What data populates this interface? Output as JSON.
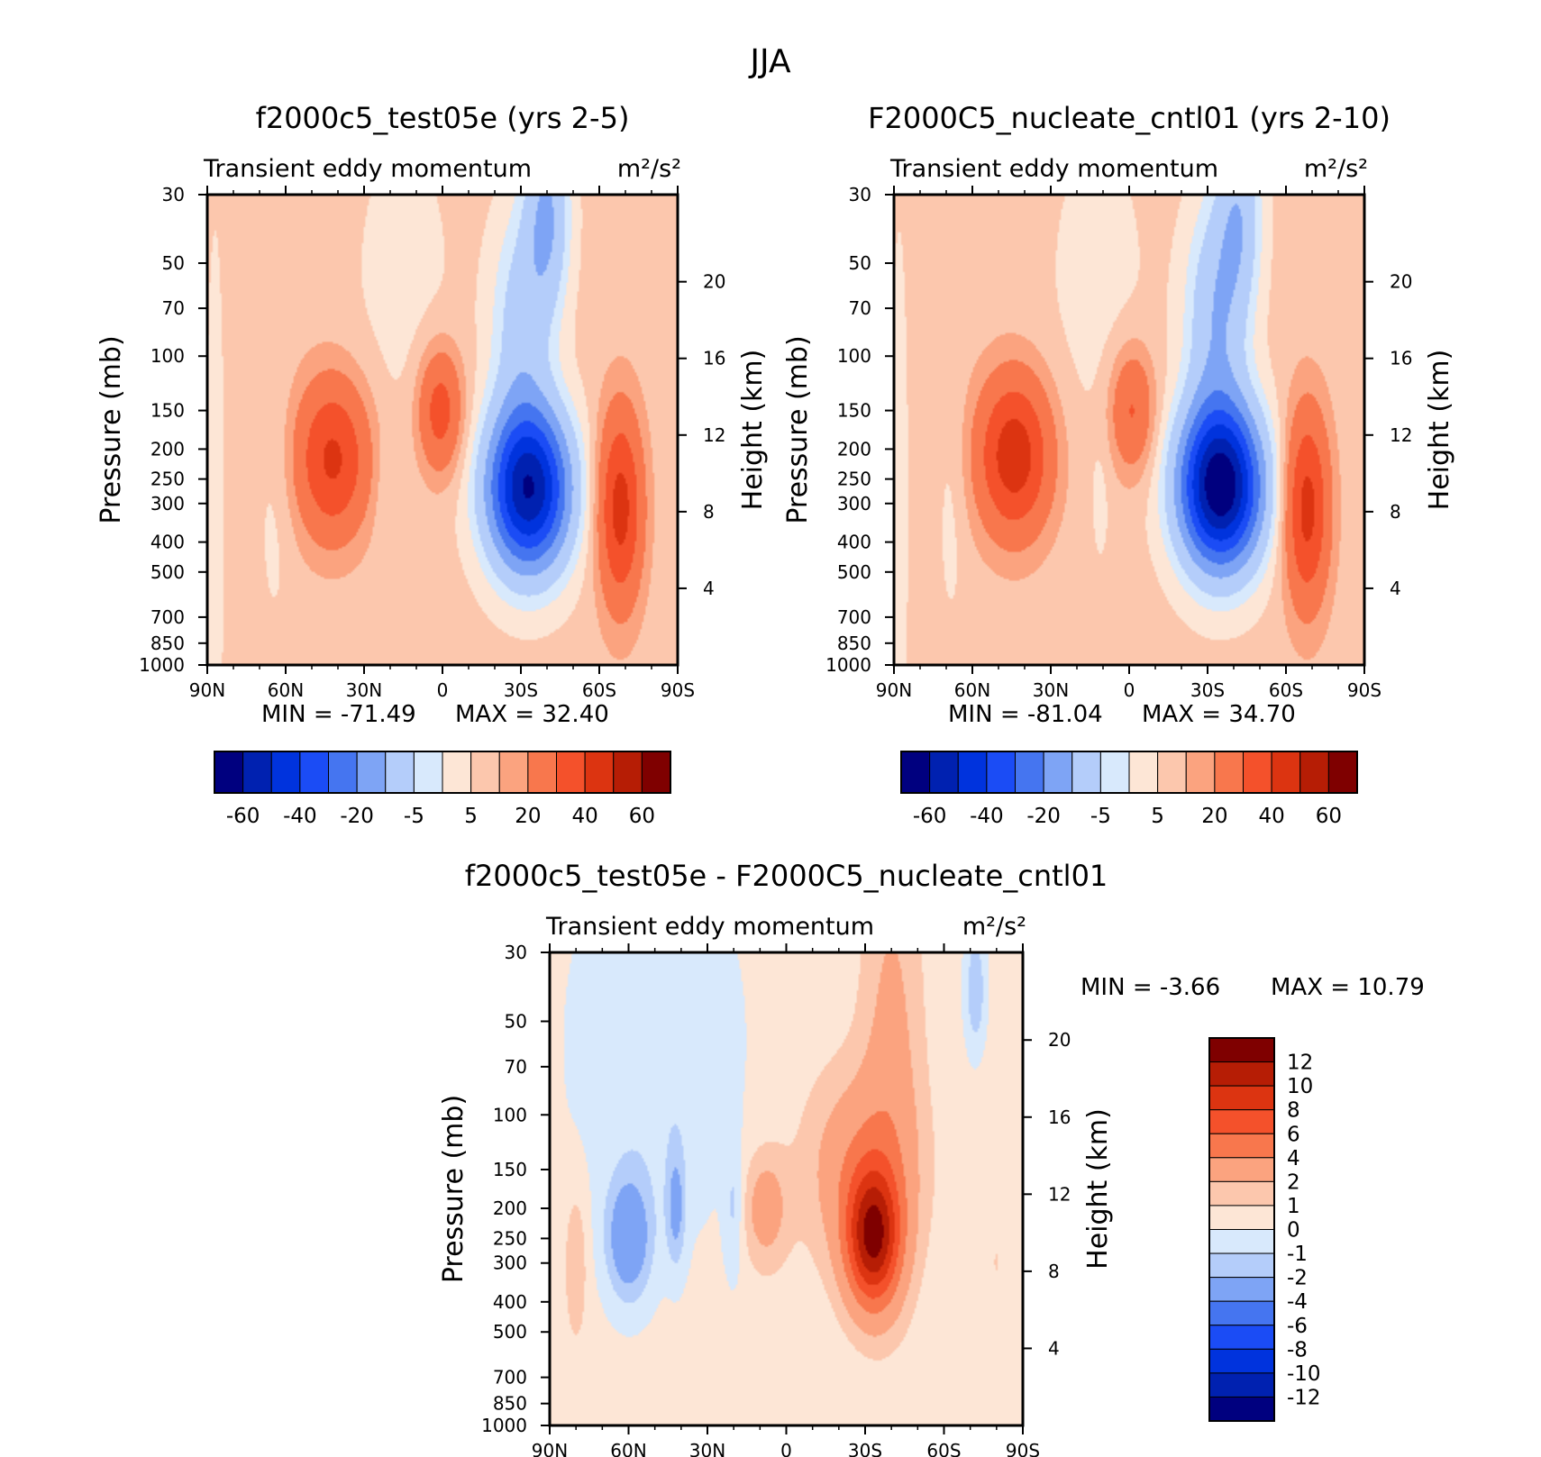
{
  "title": "JJA",
  "palettes": {
    "main": [
      "#00007f",
      "#0021b0",
      "#0033dd",
      "#1b4cf5",
      "#4575f0",
      "#7ea4f5",
      "#b4cdfa",
      "#d8e9fc",
      "#fde6d6",
      "#fcc7ad",
      "#fba37f",
      "#f8774d",
      "#f4512b",
      "#dc3411",
      "#b61d05",
      "#7f0000"
    ],
    "diff": [
      "#00007f",
      "#0021b0",
      "#0033dd",
      "#1b4cf5",
      "#4575f0",
      "#7ea4f5",
      "#b4cdfa",
      "#d8e9fc",
      "#fde6d6",
      "#fcc7ad",
      "#fba37f",
      "#f8774d",
      "#f4512b",
      "#dc3411",
      "#b61d05",
      "#7f0000"
    ]
  },
  "shared_text": {
    "subtitle": "Transient eddy momentum",
    "units": "m²/s²",
    "ylabel_left": "Pressure (mb)",
    "ylabel_right": "Height (km)"
  },
  "chart_data": [
    {
      "type": "contour",
      "id": "test",
      "title": "f2000c5_test05e (yrs 2-5)",
      "subtitle": "Transient eddy momentum",
      "units": "m²/s²",
      "xlabel": "",
      "ylabel": "Pressure (mb)",
      "ylabel_right": "Height (km)",
      "x_ticks": [
        "90N",
        "60N",
        "30N",
        "0",
        "30S",
        "60S",
        "90S"
      ],
      "x_range": [
        90,
        -90
      ],
      "y_ticks": [
        30,
        50,
        70,
        100,
        150,
        200,
        250,
        300,
        400,
        500,
        700,
        850,
        1000
      ],
      "y_range": [
        30,
        1000
      ],
      "y2_ticks": [
        4,
        8,
        12,
        16,
        20
      ],
      "min_label": "MIN = -71.49",
      "max_label": "MAX = 32.40",
      "min": -71.49,
      "max": 32.4,
      "levels": [
        -70,
        -60,
        -50,
        -40,
        -30,
        -20,
        -10,
        -5,
        0,
        5,
        10,
        20,
        30,
        40,
        50,
        60,
        70
      ],
      "colorbar_labels": [
        "-60",
        "-40",
        "-20",
        "-5",
        "5",
        "20",
        "40",
        "60"
      ],
      "palette": "main",
      "background": 2,
      "features": [
        {
          "lat": -33,
          "p": 270,
          "amp": -71.49,
          "sx": 11,
          "sy": 0.42
        },
        {
          "lat": -30,
          "p": 80,
          "amp": -16,
          "sx": 8,
          "sy": 0.6
        },
        {
          "lat": -40,
          "p": 35,
          "amp": -22,
          "sx": 6,
          "sy": 0.5
        },
        {
          "lat": 42,
          "p": 215,
          "amp": 30,
          "sx": 10,
          "sy": 0.42
        },
        {
          "lat": 1,
          "p": 150,
          "amp": 24,
          "sx": 6,
          "sy": 0.33
        },
        {
          "lat": -68,
          "p": 310,
          "amp": 32.4,
          "sx": 6,
          "sy": 0.52
        },
        {
          "lat": 15,
          "p": 60,
          "amp": -4,
          "sx": 14,
          "sy": 0.9
        },
        {
          "lat": 22,
          "p": 300,
          "amp": -3,
          "sx": 3,
          "sy": 0.35
        },
        {
          "lat": 64,
          "p": 300,
          "amp": -3.5,
          "sx": 5,
          "sy": 0.7
        },
        {
          "lat": 87,
          "p": 300,
          "amp": -5,
          "sx": 2.5,
          "sy": 1.5
        }
      ]
    },
    {
      "type": "contour",
      "id": "cntl",
      "title": "F2000C5_nucleate_cntl01 (yrs 2-10)",
      "subtitle": "Transient eddy momentum",
      "units": "m²/s²",
      "xlabel": "",
      "ylabel": "Pressure (mb)",
      "ylabel_right": "Height (km)",
      "x_ticks": [
        "90N",
        "60N",
        "30N",
        "0",
        "30S",
        "60S",
        "90S"
      ],
      "x_range": [
        90,
        -90
      ],
      "y_ticks": [
        30,
        50,
        70,
        100,
        150,
        200,
        250,
        300,
        400,
        500,
        700,
        850,
        1000
      ],
      "y_range": [
        30,
        1000
      ],
      "y2_ticks": [
        4,
        8,
        12,
        16,
        20
      ],
      "min_label": "MIN = -81.04",
      "max_label": "MAX = 34.70",
      "min": -81.04,
      "max": 34.7,
      "levels": [
        -70,
        -60,
        -50,
        -40,
        -30,
        -20,
        -10,
        -5,
        0,
        5,
        10,
        20,
        30,
        40,
        50,
        60,
        70
      ],
      "colorbar_labels": [
        "-60",
        "-40",
        "-20",
        "-5",
        "5",
        "20",
        "40",
        "60"
      ],
      "palette": "main",
      "background": 2,
      "features": [
        {
          "lat": -35,
          "p": 265,
          "amp": -81.04,
          "sx": 11,
          "sy": 0.42
        },
        {
          "lat": -33,
          "p": 75,
          "amp": -20,
          "sx": 8,
          "sy": 0.6
        },
        {
          "lat": -42,
          "p": 35,
          "amp": -18,
          "sx": 6,
          "sy": 0.5
        },
        {
          "lat": 44,
          "p": 210,
          "amp": 34.7,
          "sx": 10,
          "sy": 0.42
        },
        {
          "lat": -1,
          "p": 150,
          "amp": 20,
          "sx": 6,
          "sy": 0.33
        },
        {
          "lat": -68,
          "p": 310,
          "amp": 32,
          "sx": 6,
          "sy": 0.52
        },
        {
          "lat": 12,
          "p": 60,
          "amp": -4,
          "sx": 14,
          "sy": 0.9
        },
        {
          "lat": 11,
          "p": 300,
          "amp": -3,
          "sx": 2.5,
          "sy": 0.35
        },
        {
          "lat": 68,
          "p": 300,
          "amp": -3.5,
          "sx": 4,
          "sy": 0.7
        },
        {
          "lat": 88,
          "p": 300,
          "amp": -5,
          "sx": 2.5,
          "sy": 1.5
        }
      ]
    },
    {
      "type": "contour",
      "id": "diff",
      "title": "f2000c5_test05e - F2000C5_nucleate_cntl01",
      "subtitle": "Transient eddy momentum",
      "units": "m²/s²",
      "xlabel": "",
      "ylabel": "Pressure (mb)",
      "ylabel_right": "Height (km)",
      "x_ticks": [
        "90N",
        "60N",
        "30N",
        "0",
        "30S",
        "60S",
        "90S"
      ],
      "x_range": [
        90,
        -90
      ],
      "y_ticks": [
        30,
        50,
        70,
        100,
        150,
        200,
        250,
        300,
        400,
        500,
        700,
        850,
        1000
      ],
      "y_range": [
        30,
        1000
      ],
      "y2_ticks": [
        4,
        8,
        12,
        16,
        20
      ],
      "min_label": "MIN =   -3.66",
      "max_label": "MAX =   10.79",
      "min": -3.66,
      "max": 10.79,
      "levels": [
        -12,
        -10,
        -8,
        -6,
        -4,
        -2,
        -1,
        0,
        1,
        2,
        4,
        6,
        8,
        10,
        12
      ],
      "colorbar_labels": [
        "12",
        "10",
        "8",
        "6",
        "4",
        "2",
        "1",
        "0",
        "-1",
        "-2",
        "-4",
        "-6",
        "-8",
        "-10",
        "-12"
      ],
      "palette": "diff",
      "background": 0.4,
      "features": [
        {
          "lat": -33,
          "p": 250,
          "amp": 10.79,
          "sx": 7,
          "sy": 0.35
        },
        {
          "lat": -28,
          "p": 150,
          "amp": 3,
          "sx": 14,
          "sy": 0.5
        },
        {
          "lat": -40,
          "p": 60,
          "amp": 2,
          "sx": 8,
          "sy": 1.1
        },
        {
          "lat": 8,
          "p": 200,
          "amp": 2.5,
          "sx": 6,
          "sy": 0.3
        },
        {
          "lat": 60,
          "p": 250,
          "amp": -3.66,
          "sx": 6,
          "sy": 0.32
        },
        {
          "lat": 42,
          "p": 200,
          "amp": -2.5,
          "sx": 2.5,
          "sy": 0.3
        },
        {
          "lat": 20,
          "p": 200,
          "amp": -1.5,
          "sx": 2.5,
          "sy": 0.35
        },
        {
          "lat": 50,
          "p": 60,
          "amp": -1.4,
          "sx": 22,
          "sy": 1.0
        },
        {
          "lat": 80,
          "p": 300,
          "amp": 1.6,
          "sx": 3,
          "sy": 0.4
        },
        {
          "lat": -72,
          "p": 40,
          "amp": -2.2,
          "sx": 3,
          "sy": 0.35
        },
        {
          "lat": -80,
          "p": 300,
          "amp": 0.6,
          "sx": 10,
          "sy": 1.0
        }
      ]
    }
  ]
}
